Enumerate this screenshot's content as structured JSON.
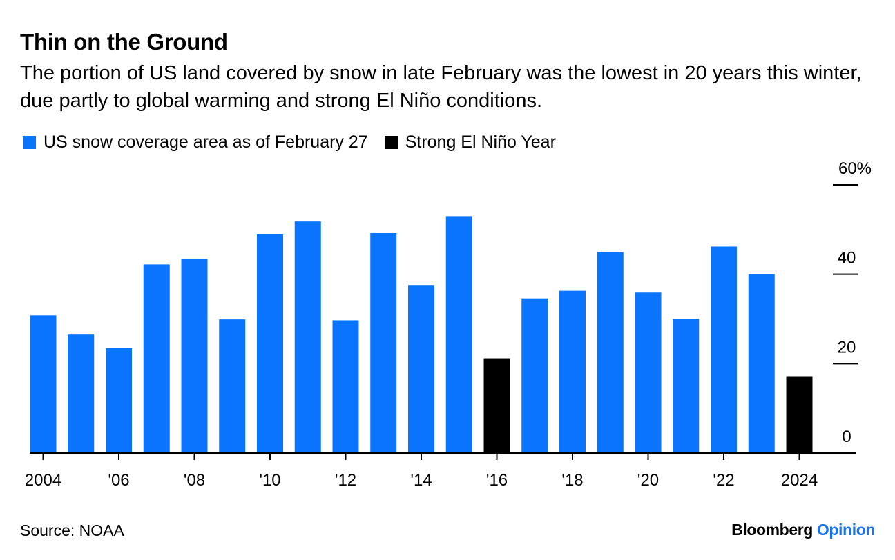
{
  "header": {
    "title": "Thin on the Ground",
    "subtitle": "The portion of US land covered by snow in late February was the lowest in 20 years this winter, due partly to global warming and strong El Niño conditions."
  },
  "legend": {
    "items": [
      {
        "label": "US snow coverage area as of February 27",
        "color": "#0a74ff"
      },
      {
        "label": "Strong El Niño Year",
        "color": "#000000"
      }
    ]
  },
  "footer": {
    "source": "Source: NOAA",
    "brand": "Bloomberg",
    "brand_suffix": "Opinion"
  },
  "chart_data": {
    "type": "bar",
    "title": "Thin on the Ground",
    "xlabel": "",
    "ylabel": "",
    "ylim": [
      0,
      60
    ],
    "yticks": [
      0,
      20,
      40,
      60
    ],
    "ytick_labels": [
      "0",
      "20",
      "40",
      "60%"
    ],
    "categories": [
      "2004",
      "2005",
      "2006",
      "2007",
      "2008",
      "2009",
      "2010",
      "2011",
      "2012",
      "2013",
      "2014",
      "2015",
      "2016",
      "2017",
      "2018",
      "2019",
      "2020",
      "2021",
      "2022",
      "2023",
      "2024"
    ],
    "xtick_labels": [
      "2004",
      "",
      "'06",
      "",
      "'08",
      "",
      "'10",
      "",
      "'12",
      "",
      "'14",
      "",
      "'16",
      "",
      "'18",
      "",
      "'20",
      "",
      "'22",
      "",
      "2024"
    ],
    "values": [
      30.8,
      26.5,
      23.5,
      42.2,
      43.4,
      29.9,
      48.9,
      51.8,
      29.7,
      49.2,
      37.6,
      53.0,
      21.2,
      34.6,
      36.3,
      44.9,
      35.9,
      30.0,
      46.2,
      40.0,
      17.2
    ],
    "highlight": [
      false,
      false,
      false,
      false,
      false,
      false,
      false,
      false,
      false,
      false,
      false,
      false,
      true,
      false,
      false,
      false,
      false,
      false,
      false,
      false,
      true
    ],
    "colors": {
      "default": "#0a74ff",
      "highlight": "#000000"
    }
  }
}
